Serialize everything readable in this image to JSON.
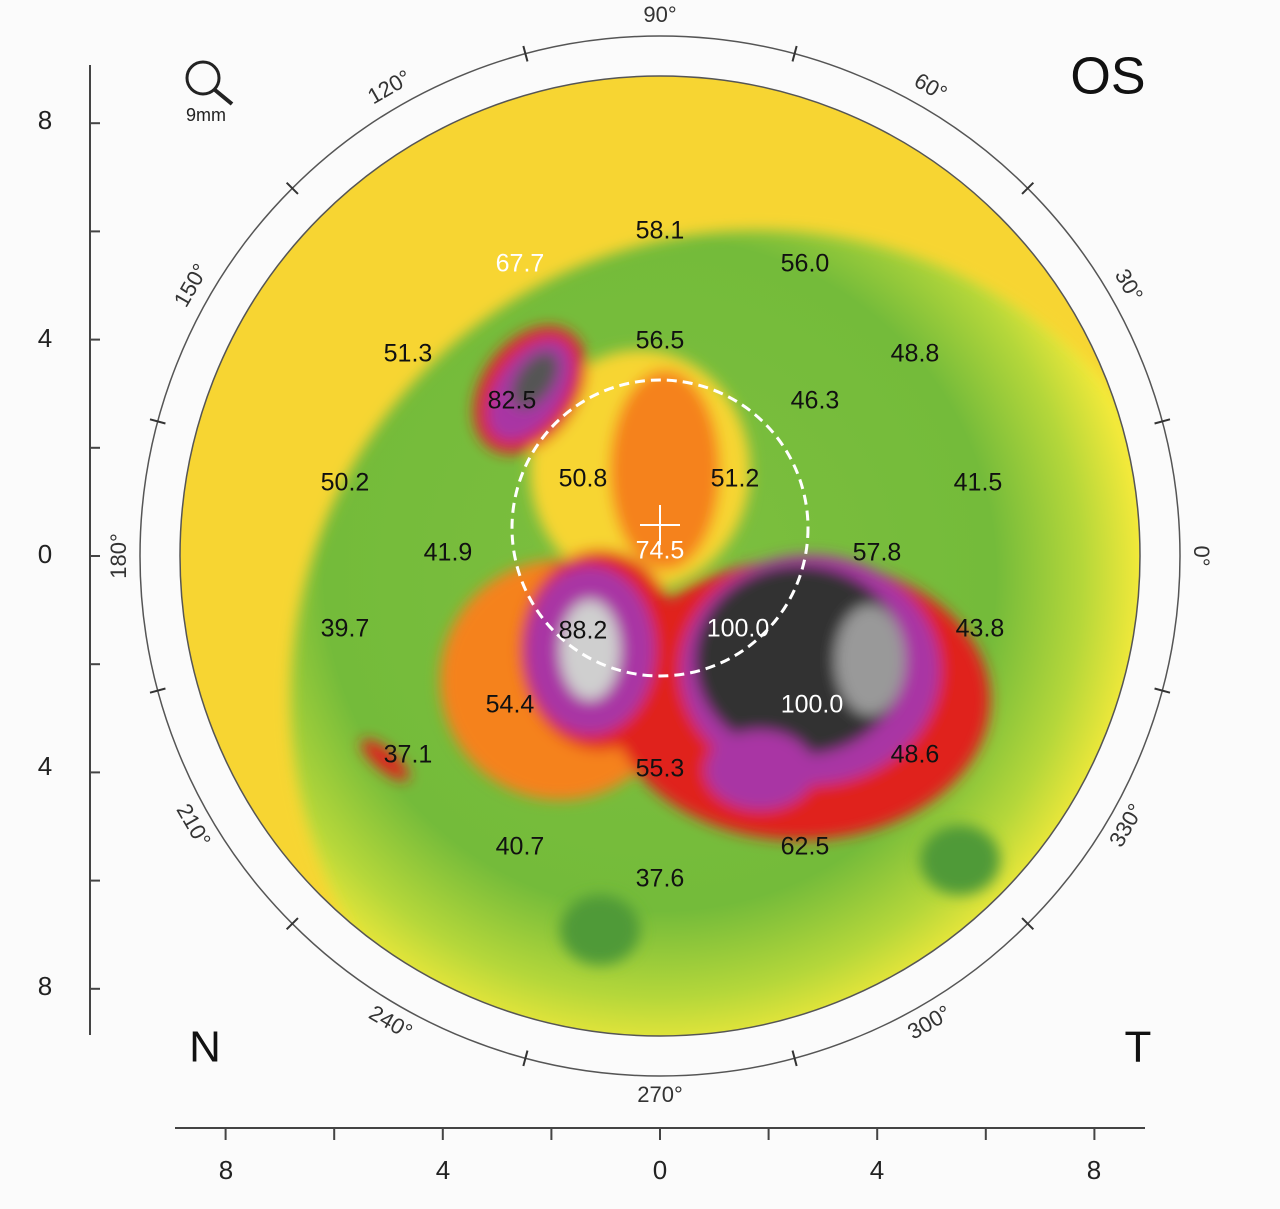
{
  "eye": "OS",
  "scale_label": "9mm",
  "nasal_label": "N",
  "temporal_label": "T",
  "angle_labels": [
    "90°",
    "60°",
    "30°",
    "0°",
    "330°",
    "300°",
    "270°",
    "240°",
    "210°",
    "180°",
    "150°",
    "120°"
  ],
  "y_axis_labels": [
    "8",
    "4",
    "0",
    "4",
    "8"
  ],
  "x_axis_labels": [
    "8",
    "4",
    "0",
    "4",
    "8"
  ],
  "readings": [
    "58.1",
    "67.7",
    "56.0",
    "51.3",
    "56.5",
    "48.8",
    "82.5",
    "46.3",
    "50.2",
    "50.8",
    "51.2",
    "41.5",
    "41.9",
    "74.5",
    "57.8",
    "39.7",
    "88.2",
    "100.0",
    "43.8",
    "54.4",
    "100.0",
    "37.1",
    "55.3",
    "48.6",
    "40.7",
    "62.5",
    "37.6"
  ]
}
